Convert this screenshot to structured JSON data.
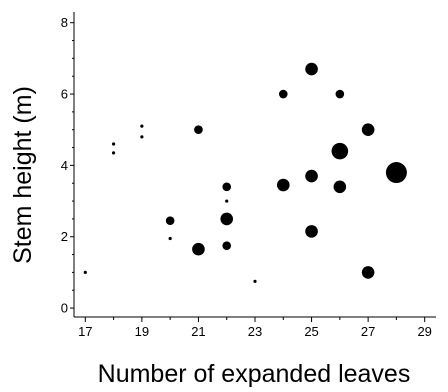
{
  "chart_data": {
    "type": "scatter",
    "xlabel": "Number of expanded leaves",
    "ylabel": "Stem height (m)",
    "xlim": [
      16.6,
      29.4
    ],
    "ylim": [
      -0.25,
      8.3
    ],
    "x_ticks": [
      17,
      19,
      21,
      23,
      25,
      27,
      29
    ],
    "x_minor_ticks": [
      18,
      20,
      22,
      24,
      26,
      28
    ],
    "y_ticks": [
      0,
      2,
      4,
      6,
      8
    ],
    "y_minor_step": 0.5,
    "grid": false,
    "legend": "none",
    "point_color": "#000000",
    "points": [
      {
        "x": 17,
        "y": 1.0,
        "size": 1
      },
      {
        "x": 18,
        "y": 4.6,
        "size": 1
      },
      {
        "x": 18,
        "y": 4.35,
        "size": 1
      },
      {
        "x": 19,
        "y": 5.1,
        "size": 1
      },
      {
        "x": 19,
        "y": 4.8,
        "size": 1
      },
      {
        "x": 20,
        "y": 2.45,
        "size": 2
      },
      {
        "x": 20,
        "y": 1.95,
        "size": 1
      },
      {
        "x": 21,
        "y": 5.0,
        "size": 2
      },
      {
        "x": 21,
        "y": 1.65,
        "size": 3
      },
      {
        "x": 22,
        "y": 3.4,
        "size": 2
      },
      {
        "x": 22,
        "y": 3.0,
        "size": 1
      },
      {
        "x": 22,
        "y": 2.5,
        "size": 3
      },
      {
        "x": 22,
        "y": 1.75,
        "size": 2
      },
      {
        "x": 23,
        "y": 0.75,
        "size": 1
      },
      {
        "x": 24,
        "y": 6.0,
        "size": 2
      },
      {
        "x": 24,
        "y": 3.45,
        "size": 3
      },
      {
        "x": 25,
        "y": 6.7,
        "size": 3
      },
      {
        "x": 25,
        "y": 3.7,
        "size": 3
      },
      {
        "x": 25,
        "y": 2.15,
        "size": 3
      },
      {
        "x": 26,
        "y": 6.0,
        "size": 2
      },
      {
        "x": 26,
        "y": 4.4,
        "size": 4
      },
      {
        "x": 26,
        "y": 3.4,
        "size": 3
      },
      {
        "x": 27,
        "y": 5.0,
        "size": 3
      },
      {
        "x": 27,
        "y": 1.0,
        "size": 3
      },
      {
        "x": 28,
        "y": 3.8,
        "size": 5
      }
    ]
  }
}
